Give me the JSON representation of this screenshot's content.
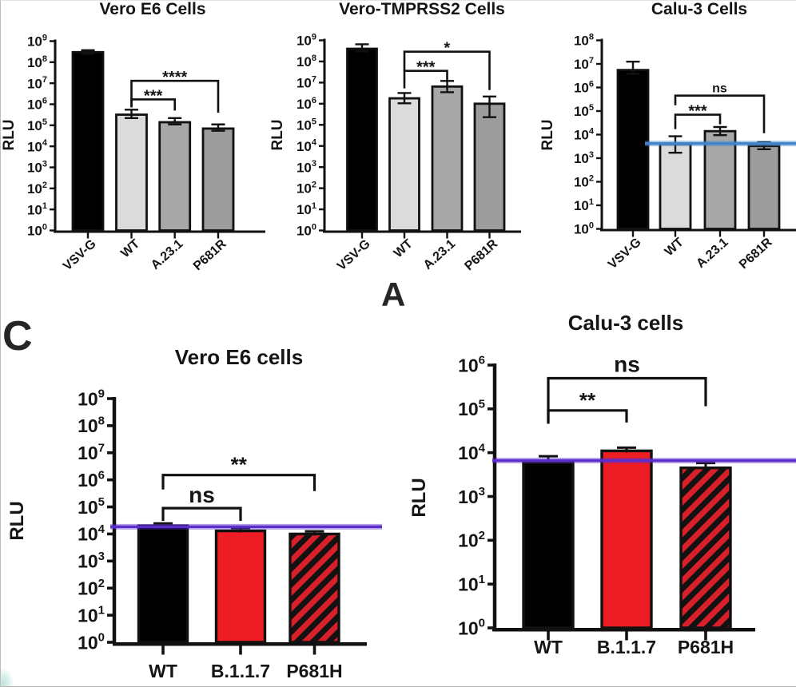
{
  "figure": {
    "panel_a_label": "A",
    "panel_c_label": "C"
  },
  "chart_data": [
    {
      "id": "vero-e6-panel-a",
      "type": "bar",
      "title": "Vero E6 Cells",
      "ylabel": "RLU",
      "yscale": "log10",
      "ylim_exp": [
        0,
        9
      ],
      "categories": [
        "VSV-G",
        "WT",
        "A.23.1",
        "P681R"
      ],
      "values": [
        300000000,
        320000,
        140000,
        70000
      ],
      "error_high": [
        370000000,
        550000,
        220000,
        110000
      ],
      "error_low": [
        250000000,
        220000,
        110000,
        55000
      ],
      "bar_fills": [
        "#000000",
        "#dbdbdb",
        "#a8a8a8",
        "#9c9c9c"
      ],
      "bar_patterns": [
        null,
        null,
        null,
        null
      ],
      "significance": [
        {
          "from": "WT",
          "to": "A.23.1",
          "label": "***",
          "level": 1700000
        },
        {
          "from": "WT",
          "to": "P681R",
          "label": "****",
          "level": 13000000
        }
      ],
      "reference_line": null
    },
    {
      "id": "vero-tmprss2-panel-a",
      "type": "bar",
      "title": "Vero-TMPRSS2 Cells",
      "ylabel": "RLU",
      "yscale": "log10",
      "ylim_exp": [
        0,
        9
      ],
      "categories": [
        "VSV-G",
        "WT",
        "A.23.1",
        "P681R"
      ],
      "values": [
        400000000,
        1800000,
        6500000,
        1000000
      ],
      "error_high": [
        650000000,
        3200000,
        12000000,
        2200000
      ],
      "error_low": [
        300000000,
        1050000,
        3500000,
        230000
      ],
      "bar_fills": [
        "#000000",
        "#dbdbdb",
        "#a8a8a8",
        "#9c9c9c"
      ],
      "bar_patterns": [
        null,
        null,
        null,
        null
      ],
      "significance": [
        {
          "from": "WT",
          "to": "A.23.1",
          "label": "***",
          "level": 36000000
        },
        {
          "from": "WT",
          "to": "P681R",
          "label": "*",
          "level": 290000000
        }
      ],
      "reference_line": null
    },
    {
      "id": "calu3-panel-a",
      "type": "bar",
      "title": "Calu-3 Cells",
      "ylabel": "RLU",
      "yscale": "log10",
      "ylim_exp": [
        0,
        8
      ],
      "categories": [
        "VSV-G",
        "WT",
        "A.23.1",
        "P681R"
      ],
      "values": [
        5500000,
        4000,
        14000,
        3300
      ],
      "error_high": [
        12500000,
        8500,
        21000,
        4800
      ],
      "error_low": [
        3800000,
        1700,
        9500,
        2400
      ],
      "bar_fills": [
        "#000000",
        "#dbdbdb",
        "#a8a8a8",
        "#9c9c9c"
      ],
      "bar_patterns": [
        null,
        null,
        null,
        null
      ],
      "significance": [
        {
          "from": "WT",
          "to": "A.23.1",
          "label": "***",
          "level": 70000
        },
        {
          "from": "WT",
          "to": "P681R",
          "label": "ns",
          "level": 450000
        }
      ],
      "reference_line": {
        "value": 4200,
        "color": "#4584cc"
      }
    },
    {
      "id": "vero-e6-panel-c",
      "type": "bar",
      "title": "Vero E6 cells",
      "ylabel": "RLU",
      "yscale": "log10",
      "ylim_exp": [
        0,
        9
      ],
      "categories": [
        "WT",
        "B.1.1.7",
        "P681H"
      ],
      "values": [
        20000,
        13000,
        10000
      ],
      "error_high": [
        24500,
        16500,
        12500
      ],
      "error_low": [
        null,
        null,
        null
      ],
      "bar_fills": [
        "#000000",
        "#ee1c23",
        "#d8202a"
      ],
      "bar_patterns": [
        null,
        null,
        "diagonal-hatch"
      ],
      "significance": [
        {
          "from": "WT",
          "to": "B.1.1.7",
          "label": "ns",
          "level": 90000
        },
        {
          "from": "WT",
          "to": "P681H",
          "label": "**",
          "level": 1500000
        }
      ],
      "reference_line": {
        "value": 18500,
        "color": "#5c2ccc"
      }
    },
    {
      "id": "calu3-panel-c",
      "type": "bar",
      "title": "Calu-3 cells",
      "ylabel": "RLU",
      "yscale": "log10",
      "ylim_exp": [
        0,
        6
      ],
      "categories": [
        "WT",
        "B.1.1.7",
        "P681H"
      ],
      "values": [
        6000,
        11000,
        4500
      ],
      "error_high": [
        8300,
        13000,
        5800
      ],
      "error_low": [
        null,
        null,
        null
      ],
      "bar_fills": [
        "#000000",
        "#ee1c23",
        "#d8202a"
      ],
      "bar_patterns": [
        null,
        null,
        "diagonal-hatch"
      ],
      "significance": [
        {
          "from": "WT",
          "to": "B.1.1.7",
          "label": "**",
          "level": 92000
        },
        {
          "from": "WT",
          "to": "P681H",
          "label": "ns",
          "level": 500000
        }
      ],
      "reference_line": {
        "value": 6600,
        "color": "#5c2ccc"
      }
    }
  ]
}
